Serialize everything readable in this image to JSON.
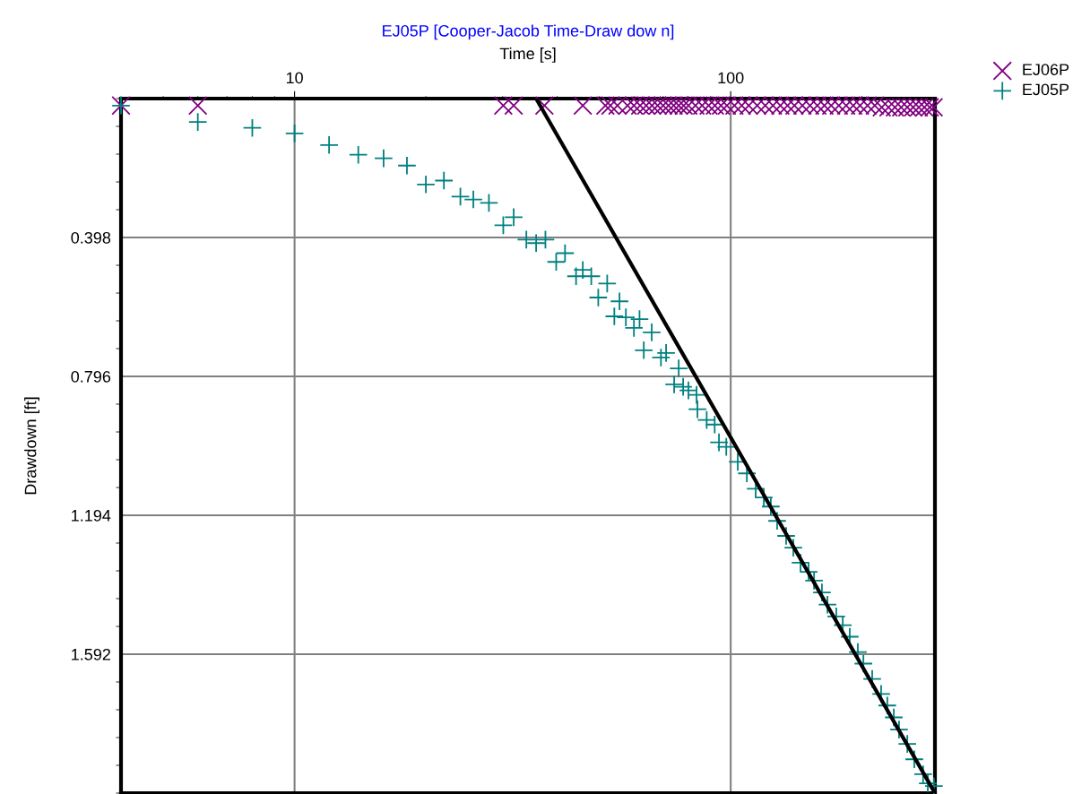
{
  "chart_data": {
    "type": "scatter",
    "title": "EJ05P [Cooper-Jacob Time-Draw dow n]",
    "xlabel": "Time [s]",
    "ylabel": "Drawdown [ft]",
    "log": "x",
    "xlim": [
      4,
      294
    ],
    "xticks": [
      10,
      100
    ],
    "ylim": [
      1.99,
      0
    ],
    "yticks": [
      0.398,
      0.796,
      1.194,
      1.592
    ],
    "grid": true,
    "legend": "top right",
    "series": [
      {
        "name": "EJ06P",
        "color": "#800080",
        "marker": "cross",
        "x": [
          4,
          6,
          30.1,
          31.8,
          37.4,
          45.8,
          51.6,
          53,
          55,
          58,
          60,
          62,
          64,
          66,
          68,
          70,
          72,
          74,
          76,
          78,
          80,
          83,
          86,
          89,
          92,
          95,
          98,
          102,
          106,
          110,
          115,
          120,
          125,
          130,
          135,
          140,
          146,
          152,
          158,
          164,
          170,
          177,
          184,
          191,
          198,
          206,
          214,
          222,
          230,
          238,
          246,
          254,
          262,
          270,
          278,
          286,
          292
        ],
        "values": [
          0.02,
          0.02,
          0.02,
          0.02,
          0.02,
          0.02,
          0.02,
          0.02,
          0.02,
          0.02,
          0.02,
          0.02,
          0.02,
          0.02,
          0.02,
          0.02,
          0.02,
          0.02,
          0.02,
          0.02,
          0.02,
          0.02,
          0.02,
          0.02,
          0.02,
          0.02,
          0.02,
          0.02,
          0.02,
          0.02,
          0.02,
          0.02,
          0.02,
          0.02,
          0.02,
          0.02,
          0.02,
          0.02,
          0.02,
          0.02,
          0.02,
          0.02,
          0.02,
          0.02,
          0.02,
          0.02,
          0.02,
          0.025,
          0.025,
          0.025,
          0.025,
          0.025,
          0.025,
          0.025,
          0.025,
          0.025,
          0.025
        ]
      },
      {
        "name": "EJ05P",
        "color": "#008080",
        "marker": "plus",
        "x": [
          4,
          6,
          8,
          10,
          12,
          14,
          16,
          18.1,
          20,
          22,
          24,
          25.7,
          27.9,
          30.1,
          31.8,
          34,
          35.8,
          37.6,
          39.8,
          41.7,
          44.2,
          45.8,
          47.9,
          49.7,
          52.1,
          54.1,
          55.6,
          57.5,
          60,
          61.8,
          63.2,
          65.9,
          69.2,
          71.1,
          74.2,
          76,
          77.8,
          80,
          83.5,
          83.9,
          88.1,
          91.9,
          94,
          97.7,
          103.8,
          108.9,
          114.1,
          119.1,
          123.6,
          127.8,
          134,
          139.2,
          144.6,
          150.9,
          155.3,
          161.9,
          166.7,
          174.6,
          180.7,
          187.5,
          195.7,
          201.5,
          211.1,
          221.3,
          228.6,
          236.6,
          243.2,
          254.1,
          263.6,
          276.2,
          283.1,
          292.4
        ],
        "values": [
          0.02,
          0.067,
          0.084,
          0.1,
          0.133,
          0.161,
          0.171,
          0.192,
          0.246,
          0.235,
          0.281,
          0.289,
          0.299,
          0.363,
          0.34,
          0.404,
          0.414,
          0.404,
          0.468,
          0.443,
          0.509,
          0.491,
          0.509,
          0.57,
          0.53,
          0.624,
          0.581,
          0.627,
          0.657,
          0.632,
          0.721,
          0.67,
          0.742,
          0.729,
          0.819,
          0.773,
          0.826,
          0.836,
          0.849,
          0.89,
          0.921,
          0.934,
          0.985,
          0.998,
          1.041,
          1.074,
          1.118,
          1.143,
          1.169,
          1.21,
          1.253,
          1.287,
          1.33,
          1.356,
          1.381,
          1.415,
          1.45,
          1.484,
          1.509,
          1.542,
          1.586,
          1.619,
          1.663,
          1.706,
          1.739,
          1.773,
          1.808,
          1.849,
          1.893,
          1.936,
          1.962,
          1.97
        ]
      },
      {
        "type": "line",
        "color": "#000000",
        "x": [
          35.8,
          294
        ],
        "values": [
          0,
          1.99
        ]
      }
    ]
  }
}
